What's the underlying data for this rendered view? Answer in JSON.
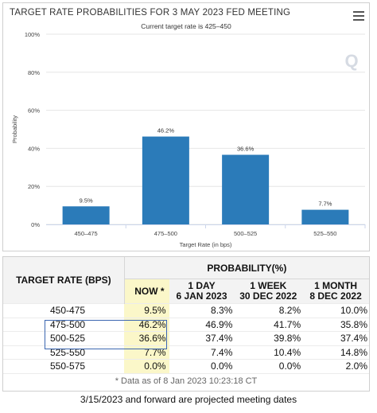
{
  "chart": {
    "title": "TARGET RATE PROBABILITIES FOR 3 MAY 2023 FED MEETING",
    "subtitle": "Current target rate is 425–450",
    "watermark": "Q",
    "colors": {
      "bar": "#2b7bb9",
      "grid": "#e6e6e6",
      "axis": "#ccd6eb",
      "text": "#444444"
    }
  },
  "chart_data": {
    "type": "bar",
    "title": "TARGET RATE PROBABILITIES FOR 3 MAY 2023 FED MEETING",
    "subtitle": "Current target rate is 425–450",
    "categories": [
      "450–475",
      "475–500",
      "500–525",
      "525–550"
    ],
    "values": [
      9.5,
      46.2,
      36.6,
      7.7
    ],
    "data_labels": [
      "9.5%",
      "46.2%",
      "36.6%",
      "7.7%"
    ],
    "xlabel": "Target Rate (in bps)",
    "ylabel": "Probability",
    "ylim": [
      0,
      100
    ],
    "yticks": [
      0,
      20,
      40,
      60,
      80,
      100
    ],
    "ytick_labels": [
      "0%",
      "20%",
      "40%",
      "60%",
      "80%",
      "100%"
    ],
    "grid": true
  },
  "table": {
    "header_left": "TARGET RATE (BPS)",
    "header_prob": "PROBABILITY(%)",
    "col_now": "NOW *",
    "cols": [
      {
        "line1": "1 DAY",
        "line2": "6 JAN 2023"
      },
      {
        "line1": "1 WEEK",
        "line2": "30 DEC 2022"
      },
      {
        "line1": "1 MONTH",
        "line2": "8 DEC 2022"
      }
    ],
    "rows": [
      {
        "rate": "450-475",
        "now": "9.5%",
        "d1": "8.3%",
        "w1": "8.2%",
        "m1": "10.0%"
      },
      {
        "rate": "475-500",
        "now": "46.2%",
        "d1": "46.9%",
        "w1": "41.7%",
        "m1": "35.8%"
      },
      {
        "rate": "500-525",
        "now": "36.6%",
        "d1": "37.4%",
        "w1": "39.8%",
        "m1": "37.4%"
      },
      {
        "rate": "525-550",
        "now": "7.7%",
        "d1": "7.4%",
        "w1": "10.4%",
        "m1": "14.8%"
      },
      {
        "rate": "550-575",
        "now": "0.0%",
        "d1": "0.0%",
        "w1": "0.0%",
        "m1": "2.0%"
      }
    ],
    "footer": "* Data as of 8 Jan 2023 10:23:18 CT"
  },
  "note": "3/15/2023 and forward are projected meeting dates"
}
